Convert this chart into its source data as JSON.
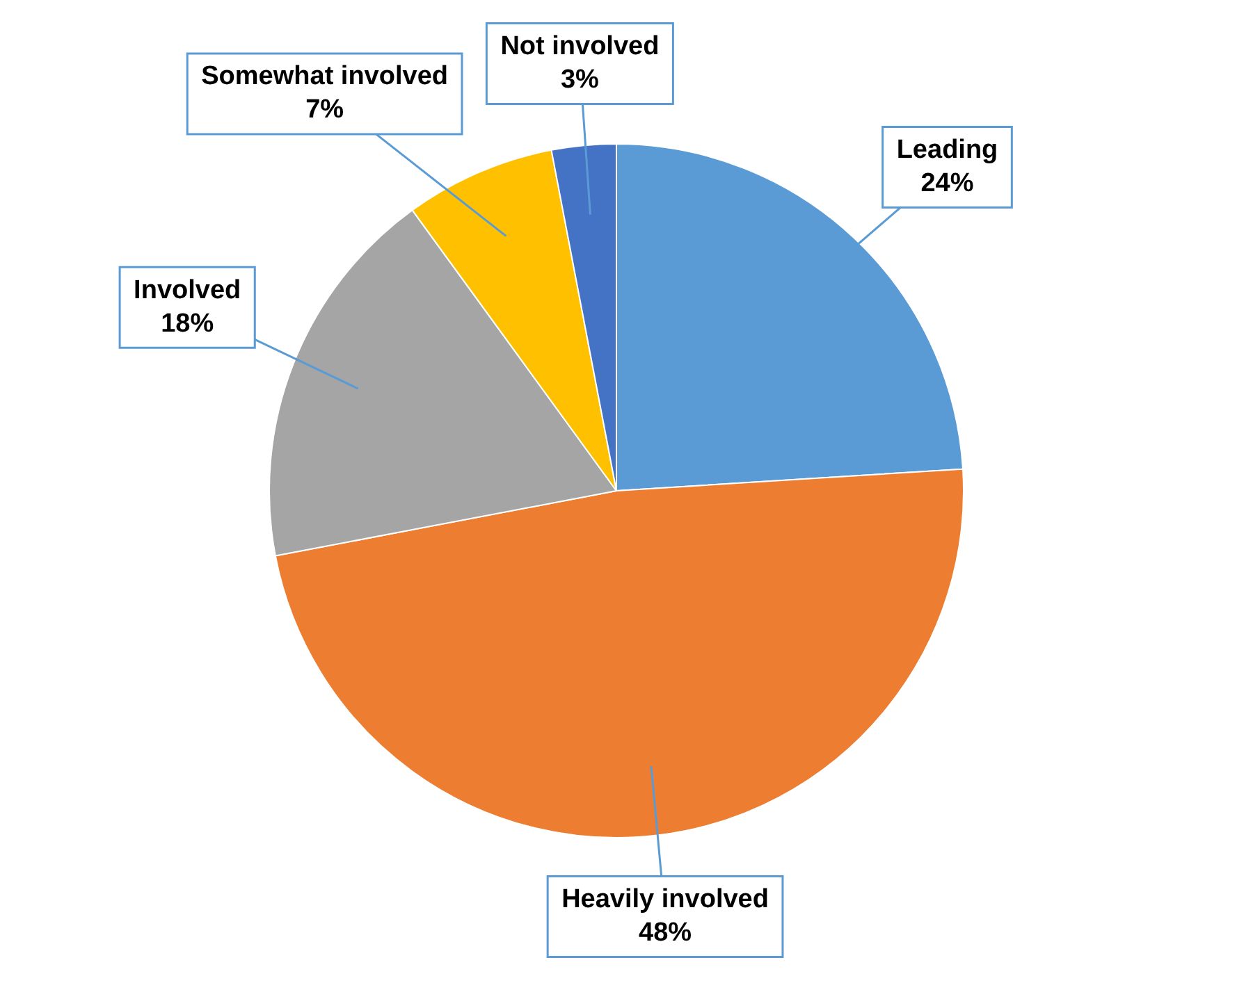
{
  "chart_data": {
    "type": "pie",
    "categories": [
      "Leading",
      "Heavily involved",
      "Involved",
      "Somewhat involved",
      "Not involved"
    ],
    "values": [
      24,
      48,
      18,
      7,
      3
    ],
    "value_labels": [
      "24%",
      "48%",
      "18%",
      "7%",
      "3%"
    ],
    "colors": [
      "#5b9bd5",
      "#ed7d31",
      "#a5a5a5",
      "#ffc000",
      "#4472c4"
    ],
    "legend": false
  }
}
